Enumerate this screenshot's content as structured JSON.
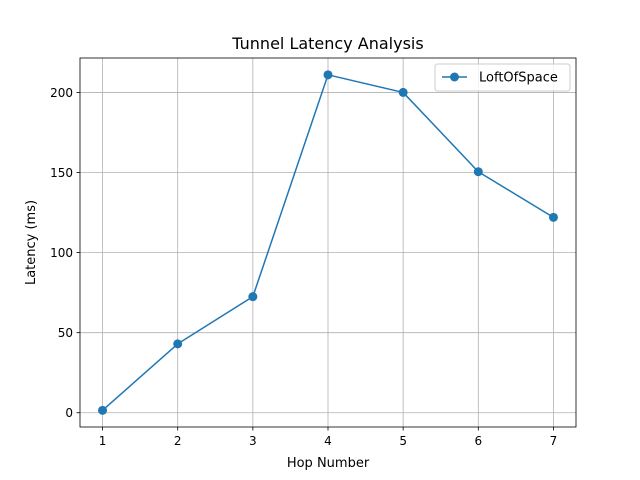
{
  "chart_data": {
    "type": "line",
    "title": "Tunnel Latency Analysis",
    "xlabel": "Hop Number",
    "ylabel": "Latency (ms)",
    "x": [
      1,
      2,
      3,
      4,
      5,
      6,
      7
    ],
    "series": [
      {
        "name": "LoftOfSpace",
        "values": [
          1.5,
          43,
          72.5,
          211,
          200,
          150.5,
          122
        ],
        "color": "#1f77b4",
        "marker": "circle"
      }
    ],
    "xticks": [
      "1",
      "2",
      "3",
      "4",
      "5",
      "6",
      "7"
    ],
    "yticks": [
      "0",
      "50",
      "100",
      "150",
      "200"
    ],
    "xlim": [
      0.7,
      7.3
    ],
    "ylim": [
      -8.9,
      221.5
    ],
    "grid": true,
    "legend_position": "top-right"
  }
}
